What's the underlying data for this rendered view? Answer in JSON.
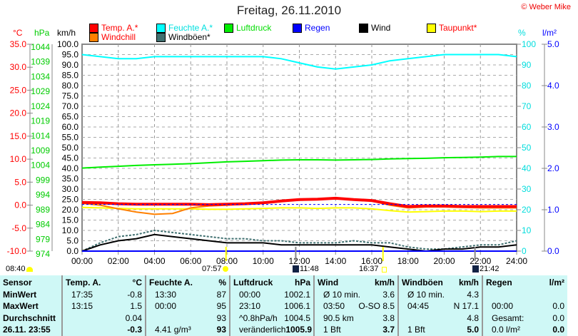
{
  "title": "Freitag, 26.11.2010",
  "copyright": "© Weber Mike",
  "axis_units": {
    "temp": "°C",
    "hpa": "hPa",
    "kmh": "km/h",
    "pct": "%",
    "rain": "l/m²"
  },
  "legend": [
    {
      "label": "Temp. A.*",
      "color": "#ff0000",
      "text_color": "#ff0000"
    },
    {
      "label": "Feuchte A.*",
      "color": "#00ffff",
      "text_color": "#00e0e0"
    },
    {
      "label": "Luftdruck",
      "color": "#00ee00",
      "text_color": "#00dd00"
    },
    {
      "label": "Regen",
      "color": "#0000ff",
      "text_color": "#0000ff"
    },
    {
      "label": "Wind",
      "color": "#000000",
      "text_color": "#000000"
    },
    {
      "label": "Taupunkt*",
      "color": "#ffff00",
      "text_color": "#ff0000"
    },
    {
      "label": "Windchill",
      "color": "#ff8000",
      "text_color": "#ff0000"
    },
    {
      "label": "Windböen*",
      "color": "#407070",
      "text_color": "#000000"
    }
  ],
  "chart_data": {
    "type": "line",
    "title": "Freitag, 26.11.2010",
    "x_ticks": [
      "00:00",
      "02:00",
      "04:00",
      "06:00",
      "08:00",
      "10:00",
      "12:00",
      "14:00",
      "16:00",
      "18:00",
      "20:00",
      "22:00",
      "24:00"
    ],
    "temp_ticks": [
      "35.0",
      "30.0",
      "25.0",
      "20.0",
      "15.0",
      "10.0",
      "5.0",
      "0.0",
      "-5.0",
      "-10.0"
    ],
    "hpa_ticks": [
      "1044",
      "1039",
      "1034",
      "1029",
      "1024",
      "1019",
      "1014",
      "1009",
      "1004",
      "999",
      "994",
      "989",
      "984",
      "979",
      "974"
    ],
    "kmh_ticks": [
      "100.0",
      "95.0",
      "90.0",
      "85.0",
      "80.0",
      "75.0",
      "70.0",
      "65.0",
      "60.0",
      "55.0",
      "50.0",
      "45.0",
      "40.0",
      "35.0",
      "30.0",
      "25.0",
      "20.0",
      "15.0",
      "10.0",
      "5.0",
      "0.0"
    ],
    "pct_ticks": [
      "100",
      "90",
      "80",
      "70",
      "60",
      "50",
      "40",
      "30",
      "20",
      "10",
      "0"
    ],
    "rain_ticks": [
      "5.0",
      "4.0",
      "3.0",
      "2.0",
      "1.0",
      "0.0"
    ],
    "ranges": {
      "temp": [
        -10,
        35
      ],
      "hpa": [
        974,
        1044
      ],
      "kmh": [
        0,
        100
      ],
      "pct": [
        0,
        100
      ],
      "rain": [
        0,
        5
      ]
    },
    "hours": [
      0,
      1,
      2,
      3,
      4,
      5,
      6,
      7,
      8,
      9,
      10,
      11,
      12,
      13,
      14,
      15,
      16,
      17,
      18,
      19,
      20,
      21,
      22,
      23,
      24
    ],
    "series": [
      {
        "name": "Feuchte A.",
        "axis": "pct",
        "color": "#00ffff",
        "values": [
          95,
          94,
          93,
          93,
          94,
          94,
          94,
          94,
          94,
          94,
          94,
          93,
          91,
          89,
          88,
          89,
          90,
          92,
          93,
          94,
          95,
          95,
          95,
          95,
          94
        ]
      },
      {
        "name": "Luftdruck",
        "axis": "hpa",
        "color": "#00ee00",
        "values": [
          1002.1,
          1002.4,
          1002.7,
          1003.0,
          1003.2,
          1003.4,
          1003.6,
          1003.9,
          1004.2,
          1004.4,
          1004.6,
          1004.8,
          1004.9,
          1004.9,
          1004.8,
          1004.9,
          1005.0,
          1005.2,
          1005.3,
          1005.4,
          1005.6,
          1005.7,
          1005.8,
          1006.0,
          1006.0
        ]
      },
      {
        "name": "Taupunkt",
        "axis": "temp",
        "color": "#ffff00",
        "values": [
          -0.5,
          -0.6,
          -0.7,
          -0.8,
          -0.8,
          -0.8,
          -0.8,
          -0.9,
          -0.9,
          -0.8,
          -0.7,
          -0.6,
          -0.6,
          -0.7,
          -0.6,
          -0.6,
          -0.8,
          -1.2,
          -1.5,
          -1.4,
          -1.3,
          -1.3,
          -1.4,
          -1.3,
          -1.3
        ]
      },
      {
        "name": "Windchill",
        "axis": "temp",
        "color": "#ff8000",
        "values": [
          0.4,
          0.0,
          -0.8,
          -1.5,
          -2.0,
          -1.8,
          -0.6,
          -0.2,
          0.0,
          0.2,
          0.4,
          0.8,
          1.1,
          1.2,
          1.4,
          1.1,
          0.9,
          0.0,
          -0.6,
          -0.4,
          -0.4,
          -0.5,
          -0.6,
          -0.6,
          -0.6
        ]
      },
      {
        "name": "Temp. A.",
        "axis": "temp",
        "color": "#ff0000",
        "values": [
          0.6,
          0.5,
          0.3,
          0.2,
          0.2,
          0.2,
          0.2,
          0.1,
          0.2,
          0.3,
          0.5,
          0.9,
          1.2,
          1.3,
          1.5,
          1.2,
          1.0,
          0.3,
          -0.3,
          -0.2,
          -0.2,
          -0.3,
          -0.3,
          -0.3,
          -0.3
        ]
      },
      {
        "name": "Windböen",
        "axis": "kmh",
        "color": "#407070",
        "values": [
          0,
          4,
          7,
          8,
          10,
          9,
          8,
          7,
          6,
          6,
          5,
          5,
          4,
          4,
          4,
          5,
          4,
          4,
          2,
          1,
          1,
          2,
          3,
          3,
          5
        ]
      },
      {
        "name": "Wind",
        "axis": "kmh",
        "color": "#000000",
        "values": [
          0,
          3,
          5,
          6,
          8,
          7,
          6,
          5,
          4,
          4,
          4,
          3,
          3,
          3,
          3,
          3,
          3,
          2,
          1,
          0,
          1,
          1,
          2,
          2,
          3
        ]
      },
      {
        "name": "Regen",
        "axis": "rain",
        "color": "#0000ff",
        "values": [
          0,
          0,
          0,
          0,
          0,
          0,
          0,
          0,
          0,
          0,
          0,
          0,
          0,
          0,
          0,
          0,
          0,
          0,
          0,
          0,
          0,
          0,
          0,
          0,
          0
        ]
      }
    ],
    "markers": [
      {
        "hour": 7.95,
        "color": "#ffff00"
      },
      {
        "hour": 11.8,
        "color": "#888888"
      },
      {
        "hour": 16.62,
        "color": "#ffff00"
      },
      {
        "hour": 21.7,
        "color": "#888888"
      }
    ]
  },
  "events": {
    "moonset": "08:40",
    "sunrise": "07:57",
    "moon_culmination": "11:48",
    "sunset": "16:37",
    "moonrise": "21:42"
  },
  "table": {
    "sensor": {
      "header": "Sensor",
      "rows": [
        "MinWert",
        "MaxWert",
        "Durchschnitt",
        "26.11. 23:55"
      ]
    },
    "temp": {
      "header": "Temp. A.",
      "unit": "°C",
      "rows": [
        [
          "17:35",
          "-0.8"
        ],
        [
          "13:15",
          "1.5"
        ],
        [
          "",
          "0.04"
        ],
        [
          "",
          "-0.3"
        ]
      ]
    },
    "hum": {
      "header": "Feuchte A.",
      "unit": "%",
      "rows": [
        [
          "13:30",
          "87"
        ],
        [
          "00:00",
          "95"
        ],
        [
          "",
          "93"
        ],
        [
          "4.41 g/m³",
          "93"
        ]
      ]
    },
    "press": {
      "header": "Luftdruck",
      "unit": "hPa",
      "rows": [
        [
          "00:00",
          "1002.1"
        ],
        [
          "23:10",
          "1006.1"
        ],
        [
          "^0.8hPa/h",
          "1004.5"
        ],
        [
          "veränderlich",
          "1005.9"
        ]
      ]
    },
    "wind": {
      "header": "Wind",
      "unit": "km/h",
      "rows": [
        [
          "Ø 10 min.",
          "3.6"
        ],
        [
          "03:50",
          "O-SO 8.5"
        ],
        [
          "90.5 km",
          "3.8"
        ],
        [
          "1 Bft",
          "3.7"
        ]
      ]
    },
    "gust": {
      "header": "Windböen",
      "unit": "km/h",
      "rows": [
        [
          "Ø 10 min.",
          "4.3"
        ],
        [
          "04:45",
          "N 17.1"
        ],
        [
          "",
          "4.8"
        ],
        [
          "1 Bft",
          "5.0"
        ]
      ]
    },
    "rain": {
      "header": "Regen",
      "unit": "l/m²",
      "rows": [
        [
          "",
          ""
        ],
        [
          "00:00",
          "0.0"
        ],
        [
          "Gesamt:",
          "0.0"
        ],
        [
          "0.0 l/m²",
          "0.0"
        ]
      ]
    }
  }
}
